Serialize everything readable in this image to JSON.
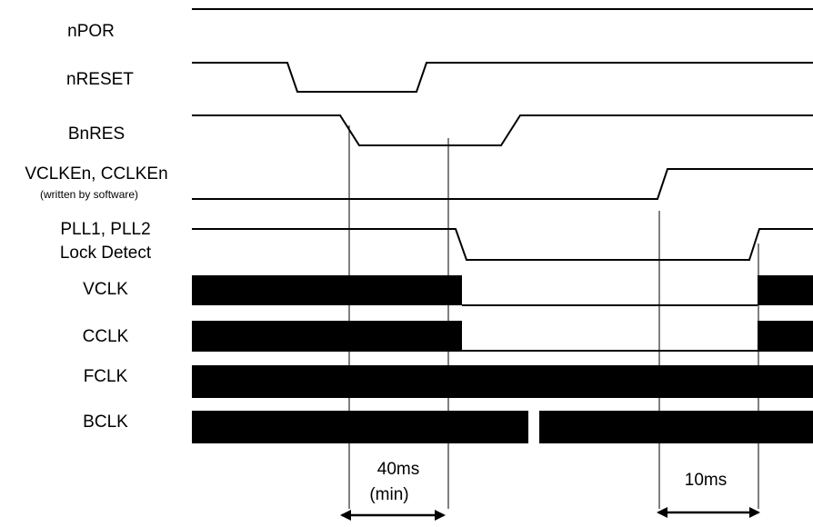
{
  "signals": [
    {
      "id": "npor",
      "label": "nPOR"
    },
    {
      "id": "nreset",
      "label": "nRESET"
    },
    {
      "id": "bnres",
      "label": "BnRES"
    },
    {
      "id": "vclken",
      "label": "VCLKEn, CCLKEn",
      "sublabel": "(written by software)"
    },
    {
      "id": "pll",
      "label_line1": "PLL1, PLL2",
      "label_line2": "Lock Detect"
    },
    {
      "id": "vclk",
      "label": "VCLK"
    },
    {
      "id": "cclk",
      "label": "CCLK"
    },
    {
      "id": "fclk",
      "label": "FCLK"
    },
    {
      "id": "bclk",
      "label": "BCLK"
    }
  ],
  "dimensions": [
    {
      "line1": "40ms",
      "line2": "(min)"
    },
    {
      "line1": "10ms"
    }
  ],
  "colors": {
    "ink": "#000000",
    "background": "#ffffff"
  }
}
